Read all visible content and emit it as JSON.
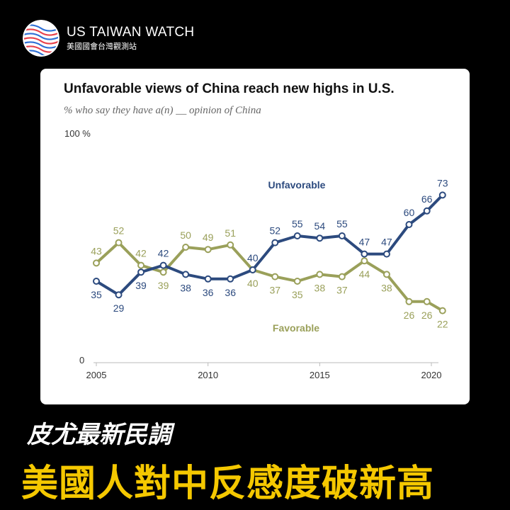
{
  "brand": {
    "name": "US TAIWAN WATCH",
    "subtitle": "美國國會台灣觀測站"
  },
  "colors": {
    "unfavorable": "#2c4a7e",
    "favorable": "#9aa05a",
    "label_text": "#555555",
    "headline_yellow": "#f5c800"
  },
  "headline": {
    "line1": "皮尤最新民調",
    "line2": "美國人對中反感度破新高"
  },
  "chart_data": {
    "type": "line",
    "title": "Unfavorable views of China reach new highs in U.S.",
    "subtitle": "% who say they have a(n) __ opinion of China",
    "y_top_label": "100 %",
    "y_zero_label": "0",
    "ylim": [
      0,
      100
    ],
    "xlim": [
      2005,
      2020.5
    ],
    "x_ticks": [
      2005,
      2010,
      2015,
      2020
    ],
    "x": [
      2005,
      2006,
      2007,
      2008,
      2009,
      2010,
      2011,
      2012,
      2013,
      2014,
      2015,
      2016,
      2017,
      2018,
      2019,
      2019.8,
      2020.5
    ],
    "grid": false,
    "series": [
      {
        "name": "Unfavorable",
        "values": [
          35,
          29,
          39,
          42,
          38,
          36,
          36,
          40,
          52,
          55,
          54,
          55,
          47,
          47,
          60,
          66,
          73
        ],
        "labels": [
          "35",
          "29",
          "39",
          "42",
          "38",
          "36",
          "36",
          "40",
          "52",
          "55",
          "54",
          "55",
          "47",
          "47",
          "60",
          "66",
          "73"
        ]
      },
      {
        "name": "Favorable",
        "values": [
          43,
          52,
          42,
          39,
          50,
          49,
          51,
          40,
          37,
          35,
          38,
          37,
          44,
          38,
          26,
          26,
          22
        ],
        "labels": [
          "43",
          "52",
          "42",
          "39",
          "50",
          "49",
          "51",
          "40",
          "37",
          "35",
          "38",
          "37",
          "44",
          "38",
          "26",
          "26",
          "22"
        ]
      }
    ]
  }
}
